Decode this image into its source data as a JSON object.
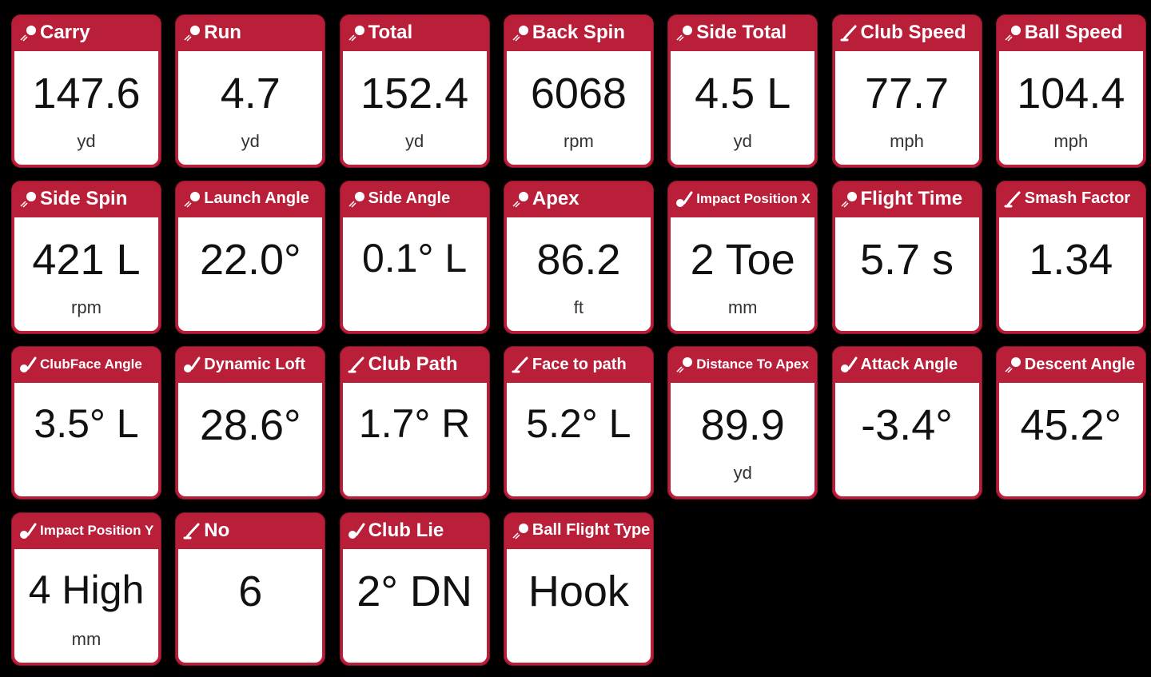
{
  "tiles": [
    {
      "label": "Carry",
      "value": "147.6",
      "unit": "yd",
      "icon": "ball-icon"
    },
    {
      "label": "Run",
      "value": "4.7",
      "unit": "yd",
      "icon": "ball-icon"
    },
    {
      "label": "Total",
      "value": "152.4",
      "unit": "yd",
      "icon": "ball-icon"
    },
    {
      "label": "Back Spin",
      "value": "6068",
      "unit": "rpm",
      "icon": "ball-icon"
    },
    {
      "label": "Side Total",
      "value": "4.5 L",
      "unit": "yd",
      "icon": "ball-icon"
    },
    {
      "label": "Club Speed",
      "value": "77.7",
      "unit": "mph",
      "icon": "club-icon"
    },
    {
      "label": "Ball Speed",
      "value": "104.4",
      "unit": "mph",
      "icon": "ball-icon"
    },
    {
      "label": "Side Spin",
      "value": "421 L",
      "unit": "rpm",
      "icon": "ball-icon"
    },
    {
      "label": "Launch Angle",
      "value": "22.0°",
      "unit": "",
      "icon": "ball-icon"
    },
    {
      "label": "Side Angle",
      "value": "0.1° L",
      "unit": "",
      "icon": "ball-icon"
    },
    {
      "label": "Apex",
      "value": "86.2",
      "unit": "ft",
      "icon": "ball-icon"
    },
    {
      "label": "Impact Position X",
      "value": "2 Toe",
      "unit": "mm",
      "icon": "club-ball-icon"
    },
    {
      "label": "Flight Time",
      "value": "5.7 s",
      "unit": "",
      "icon": "ball-icon"
    },
    {
      "label": "Smash Factor",
      "value": "1.34",
      "unit": "",
      "icon": "club-icon"
    },
    {
      "label": "ClubFace Angle",
      "value": "3.5° L",
      "unit": "",
      "icon": "club-ball-icon"
    },
    {
      "label": "Dynamic Loft",
      "value": "28.6°",
      "unit": "",
      "icon": "club-ball-icon"
    },
    {
      "label": "Club Path",
      "value": "1.7° R",
      "unit": "",
      "icon": "club-icon"
    },
    {
      "label": "Face to path",
      "value": "5.2° L",
      "unit": "",
      "icon": "club-icon"
    },
    {
      "label": "Distance To Apex",
      "value": "89.9",
      "unit": "yd",
      "icon": "ball-icon"
    },
    {
      "label": "Attack Angle",
      "value": "-3.4°",
      "unit": "",
      "icon": "club-ball-icon"
    },
    {
      "label": "Descent Angle",
      "value": "45.2°",
      "unit": "",
      "icon": "ball-icon"
    },
    {
      "label": "Impact Position Y",
      "value": "4 High",
      "unit": "mm",
      "icon": "club-ball-icon"
    },
    {
      "label": "No",
      "value": "6",
      "unit": "",
      "icon": "club-icon"
    },
    {
      "label": "Club Lie",
      "value": "2° DN",
      "unit": "",
      "icon": "club-ball-icon"
    },
    {
      "label": "Ball Flight Type",
      "value": "Hook",
      "unit": "",
      "icon": "ball-icon"
    }
  ],
  "colors": {
    "tile": "#ba1f3a",
    "background": "#000000",
    "value": "#111111"
  }
}
